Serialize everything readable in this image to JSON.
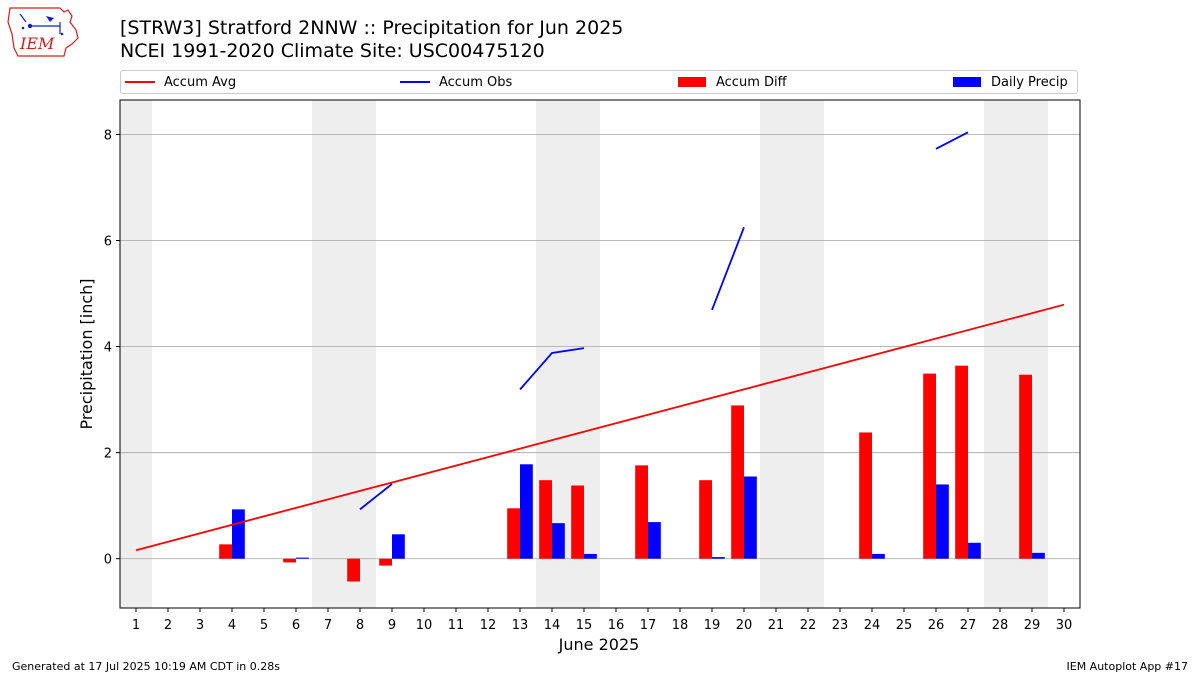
{
  "header": {
    "title_line1": "[STRW3] Stratford 2NNW :: Precipitation for Jun 2025",
    "title_line2": "NCEI 1991-2020 Climate Site: USC00475120",
    "logo_text": "IEM"
  },
  "legend": {
    "accum_avg": "Accum Avg",
    "accum_obs": "Accum Obs",
    "accum_diff": "Accum Diff",
    "daily_precip": "Daily Precip"
  },
  "footer": {
    "generated": "Generated at 17 Jul 2025 10:19 AM CDT in 0.28s",
    "app": "IEM Autoplot App #17"
  },
  "colors": {
    "avg": "#ff0000",
    "obs": "#0000ff",
    "diff": "#ff0000",
    "daily": "#0000ff",
    "weekend_band": "#eeeeee",
    "grid": "#b0b0b0"
  },
  "chart_data": {
    "type": "bar",
    "xlabel": "June 2025",
    "ylabel": "Precipitation [inch]",
    "xlim": [
      0.5,
      30.5
    ],
    "ylim": [
      -0.93,
      8.65
    ],
    "x_ticks": [
      1,
      2,
      3,
      4,
      5,
      6,
      7,
      8,
      9,
      10,
      11,
      12,
      13,
      14,
      15,
      16,
      17,
      18,
      19,
      20,
      21,
      22,
      23,
      24,
      25,
      26,
      27,
      28,
      29,
      30
    ],
    "y_ticks": [
      0,
      2,
      4,
      6,
      8
    ],
    "y_tick_labels": [
      "0",
      "2",
      "4",
      "6",
      "8"
    ],
    "shaded_days": [
      1,
      7,
      8,
      14,
      15,
      21,
      22,
      28,
      29
    ],
    "series": [
      {
        "name": "Accum Avg",
        "kind": "line",
        "x": [
          1,
          30
        ],
        "values": [
          0.16,
          4.79
        ]
      },
      {
        "name": "Accum Obs",
        "kind": "line",
        "segments": [
          {
            "x": [
              8,
              9
            ],
            "values": [
              0.93,
              1.41
            ]
          },
          {
            "x": [
              13,
              14,
              15
            ],
            "values": [
              3.19,
              3.88,
              3.97
            ]
          },
          {
            "x": [
              19,
              20
            ],
            "values": [
              4.69,
              6.25
            ]
          },
          {
            "x": [
              26,
              27
            ],
            "values": [
              7.73,
              8.04
            ]
          }
        ]
      },
      {
        "name": "Accum Diff",
        "kind": "bar",
        "x": [
          4,
          6,
          8,
          9,
          13,
          14,
          15,
          17,
          19,
          20,
          24,
          26,
          27,
          29
        ],
        "values": [
          0.27,
          -0.07,
          -0.43,
          -0.13,
          0.95,
          1.48,
          1.38,
          1.76,
          1.48,
          2.89,
          2.38,
          3.49,
          3.64,
          3.47
        ]
      },
      {
        "name": "Daily Precip",
        "kind": "bar",
        "x": [
          4,
          6,
          9,
          13,
          14,
          15,
          17,
          19,
          20,
          24,
          26,
          27,
          29
        ],
        "values": [
          0.93,
          0.02,
          0.46,
          1.78,
          0.67,
          0.09,
          0.69,
          0.03,
          1.55,
          0.09,
          1.4,
          0.3,
          0.11
        ]
      }
    ]
  }
}
